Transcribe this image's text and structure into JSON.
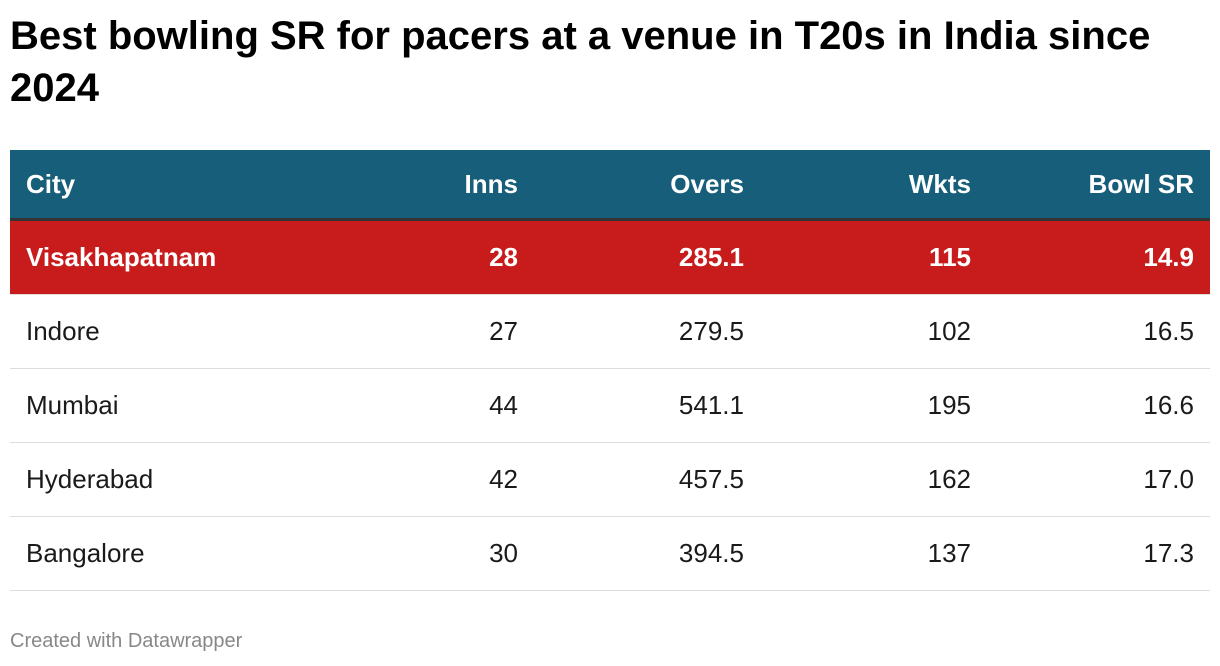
{
  "header": {
    "title": "Best bowling SR for pacers at a venue in T20s in India since 2024"
  },
  "table": {
    "columns": [
      "City",
      "Inns",
      "Overs",
      "Wkts",
      "Bowl SR"
    ],
    "rows": [
      [
        "Visakhapatnam",
        "28",
        "285.1",
        "115",
        "14.9"
      ],
      [
        "Indore",
        "27",
        "279.5",
        "102",
        "16.5"
      ],
      [
        "Mumbai",
        "44",
        "541.1",
        "195",
        "16.6"
      ],
      [
        "Hyderabad",
        "42",
        "457.5",
        "162",
        "17.0"
      ],
      [
        "Bangalore",
        "30",
        "394.5",
        "137",
        "17.3"
      ]
    ]
  },
  "footer": {
    "credit": "Created with Datawrapper"
  }
}
